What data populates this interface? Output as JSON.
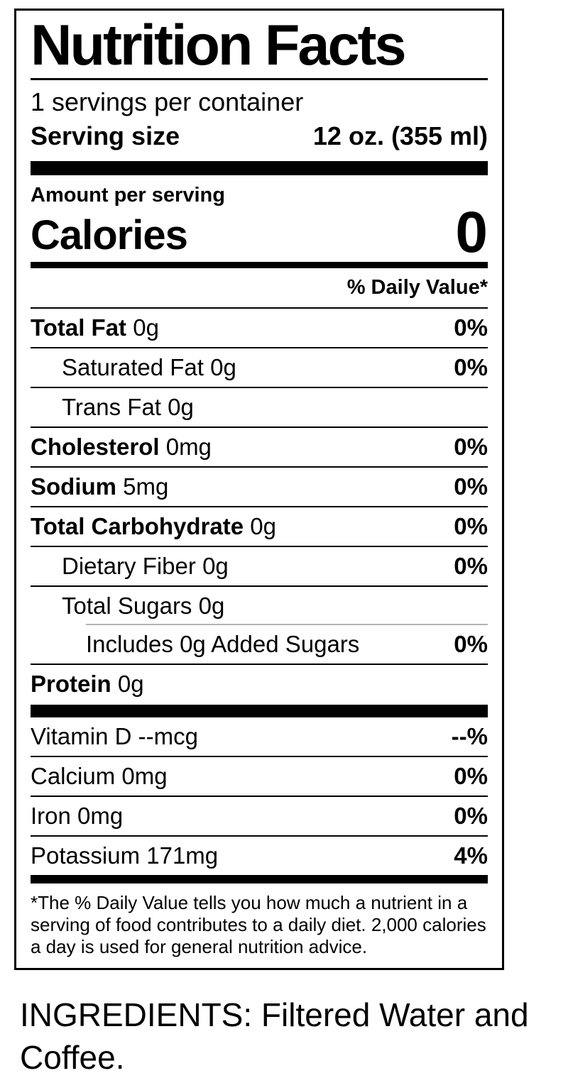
{
  "label": {
    "title": "Nutrition Facts",
    "servings_per_container": "1 servings per container",
    "serving_size_label": "Serving size",
    "serving_size_value": "12 oz. (355 ml)",
    "amount_per_serving": "Amount per serving",
    "calories_label": "Calories",
    "calories_value": "0",
    "daily_value_header": "% Daily Value*",
    "rows": [
      {
        "name": "Total Fat",
        "amount": "0g",
        "dv": "0%",
        "bold": true,
        "indent": 0
      },
      {
        "name": "Saturated Fat",
        "amount": "0g",
        "dv": "0%",
        "bold": false,
        "indent": 1
      },
      {
        "name": "Trans Fat",
        "amount": "0g",
        "dv": "",
        "bold": false,
        "indent": 1
      },
      {
        "name": "Cholesterol",
        "amount": "0mg",
        "dv": "0%",
        "bold": true,
        "indent": 0
      },
      {
        "name": "Sodium",
        "amount": "5mg",
        "dv": "0%",
        "bold": true,
        "indent": 0
      },
      {
        "name": "Total Carbohydrate",
        "amount": "0g",
        "dv": "0%",
        "bold": true,
        "indent": 0
      },
      {
        "name": "Dietary Fiber",
        "amount": "0g",
        "dv": "0%",
        "bold": false,
        "indent": 1
      },
      {
        "name": "Total Sugars",
        "amount": "0g",
        "dv": "",
        "bold": false,
        "indent": 1
      },
      {
        "name": "Includes 0g Added Sugars",
        "amount": "",
        "dv": "0%",
        "bold": false,
        "indent": 2
      },
      {
        "name": "Protein",
        "amount": "0g",
        "dv": "",
        "bold": true,
        "indent": 0
      }
    ],
    "micronutrients": [
      {
        "name": "Vitamin D",
        "amount": "--mcg",
        "dv": "--%"
      },
      {
        "name": "Calcium",
        "amount": "0mg",
        "dv": "0%"
      },
      {
        "name": "Iron",
        "amount": "0mg",
        "dv": "0%"
      },
      {
        "name": "Potassium",
        "amount": "171mg",
        "dv": "4%"
      }
    ],
    "footnote": "*The % Daily Value tells you how much a nutrient in a serving of food contributes to a daily diet. 2,000 calories a day is used for general nutrition advice."
  },
  "ingredients": "INGREDIENTS: Filtered Water and Coffee.",
  "colors": {
    "text": "#000000",
    "background": "#ffffff",
    "rule": "#000000",
    "light_rule": "#b3b3b3"
  }
}
